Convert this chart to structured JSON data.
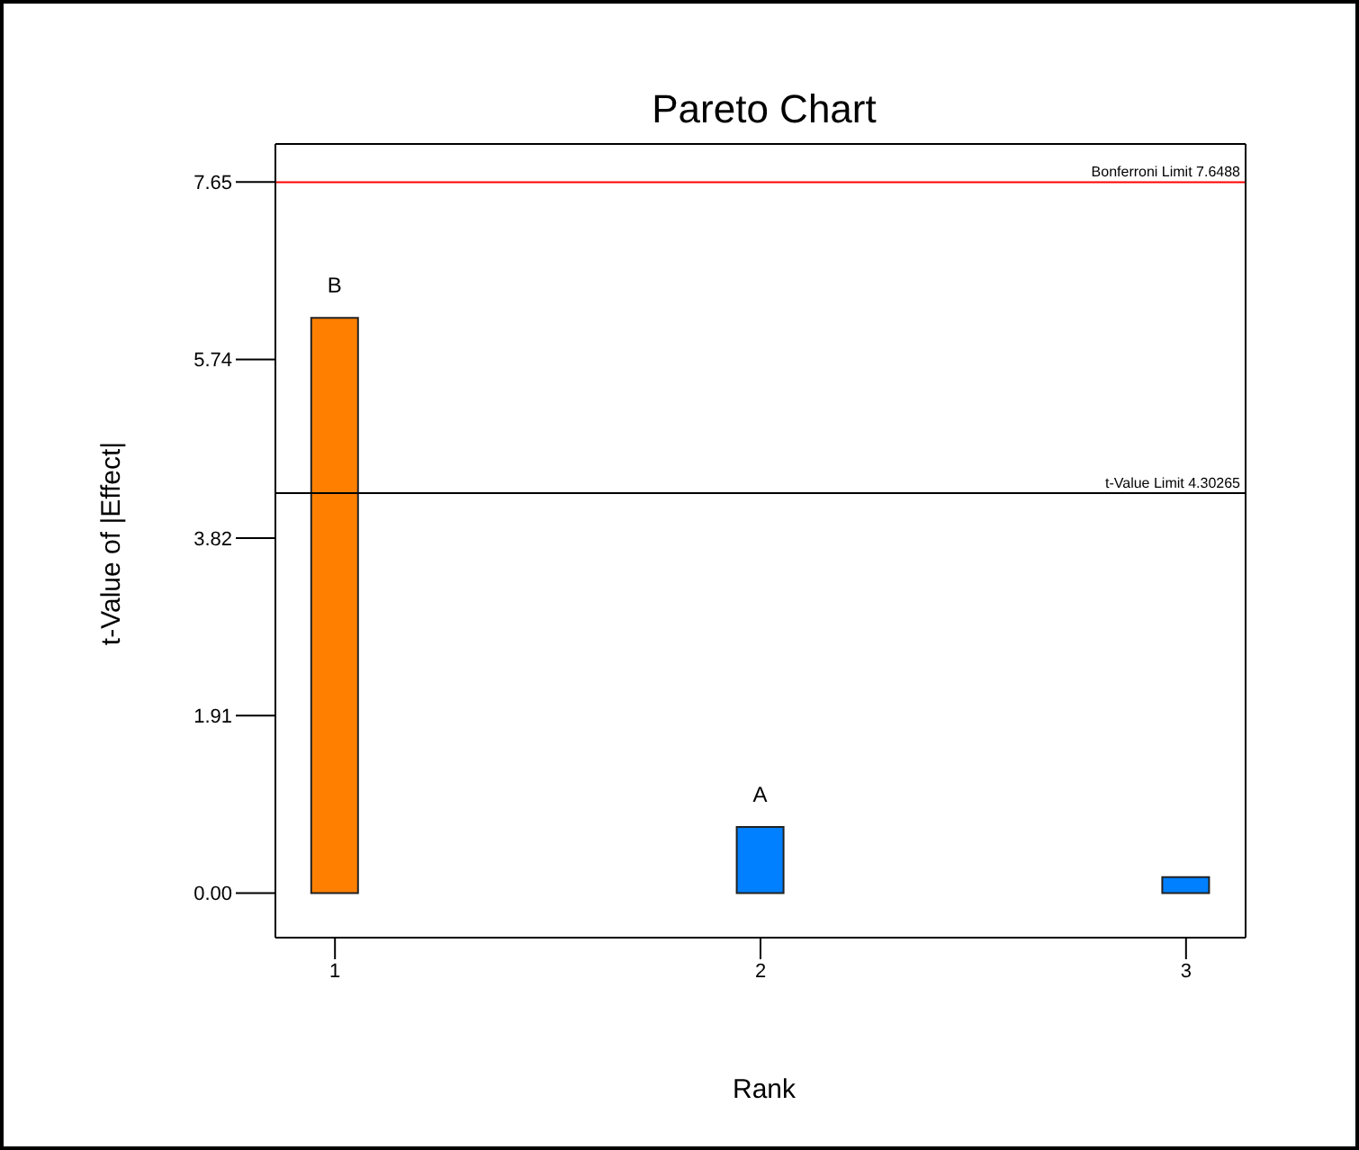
{
  "chart_data": {
    "type": "bar",
    "title": "Pareto Chart",
    "xlabel": "Rank",
    "ylabel": "t-Value of |Effect|",
    "x": [
      1,
      2,
      3
    ],
    "values": [
      6.19,
      0.71,
      0.17
    ],
    "colors": [
      "#ff8000",
      "#0080ff",
      "#0080ff"
    ],
    "value_labels": [
      "B",
      "A",
      null
    ],
    "xlim": [
      0.86,
      3.14
    ],
    "xticks": [
      1,
      2,
      3
    ],
    "ylim": [
      -0.48,
      8.06
    ],
    "yticks": [
      {
        "value": 0,
        "label": "0.00"
      },
      1.91,
      3.82,
      5.74,
      7.65
    ],
    "ref_lines": [
      {
        "axis": "y",
        "value": 7.6488,
        "label": "Bonferroni Limit 7.6488",
        "color": "#ff0000"
      },
      {
        "axis": "y",
        "value": 4.30265,
        "label": "t-Value Limit 4.30265",
        "color": "#000000"
      }
    ],
    "grid": false,
    "legend": false
  }
}
